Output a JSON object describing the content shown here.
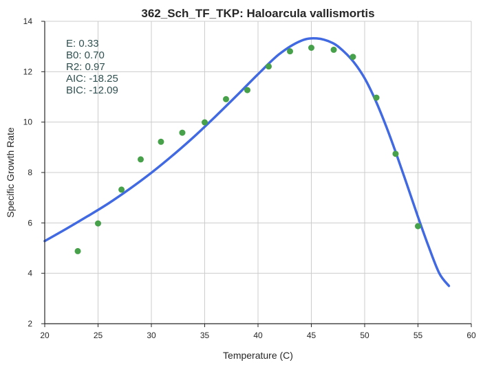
{
  "chart_data": {
    "type": "scatter",
    "title": "362_Sch_TF_TKP: Haloarcula vallismortis",
    "xlabel": "Temperature (C)",
    "ylabel": "Specific Growth Rate",
    "xlim": [
      20,
      60
    ],
    "ylim": [
      2,
      14
    ],
    "xticks": [
      "20",
      "25",
      "30",
      "35",
      "40",
      "45",
      "50",
      "55",
      "60"
    ],
    "yticks": [
      "2",
      "4",
      "6",
      "8",
      "10",
      "12",
      "14"
    ],
    "grid": true,
    "annotations": [
      "E:  0.33",
      "B0:  0.70",
      "R2:  0.97",
      "AIC: -18.25",
      "BIC: -12.09"
    ],
    "series": [
      {
        "type": "scatter",
        "color": "#47a04a",
        "x": [
          23.1,
          25.0,
          27.2,
          29.0,
          30.9,
          32.9,
          35.0,
          37.0,
          39.0,
          41.0,
          43.0,
          45.0,
          47.1,
          48.9,
          51.1,
          52.9,
          55.0
        ],
        "y": [
          4.88,
          5.98,
          7.32,
          8.52,
          9.22,
          9.58,
          9.99,
          10.91,
          11.27,
          12.21,
          12.81,
          12.95,
          12.87,
          12.59,
          10.97,
          8.74,
          5.87
        ]
      },
      {
        "type": "line",
        "color": "#4169e1",
        "x": [
          20,
          22,
          24,
          26,
          28,
          30,
          32,
          34,
          36,
          38,
          40,
          42,
          44,
          45.5,
          47,
          48,
          49,
          50,
          51,
          52,
          53,
          54,
          55,
          56,
          57,
          57.9
        ],
        "y": [
          5.28,
          5.76,
          6.26,
          6.78,
          7.36,
          7.99,
          8.68,
          9.42,
          10.22,
          11.05,
          11.9,
          12.7,
          13.22,
          13.32,
          13.14,
          12.82,
          12.37,
          11.74,
          10.88,
          9.85,
          8.7,
          7.48,
          6.24,
          5.06,
          4.0,
          3.5
        ]
      }
    ]
  }
}
